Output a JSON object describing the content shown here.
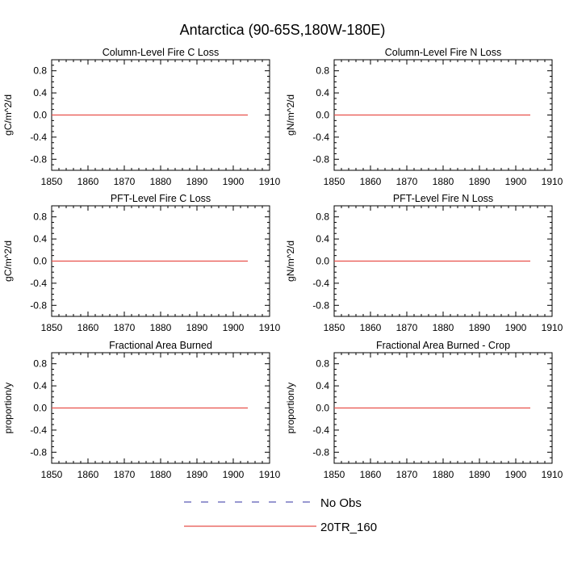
{
  "figure": {
    "title": "Antarctica (90-65S,180W-180E)"
  },
  "legend": {
    "placement": "bottom-center",
    "entries": [
      {
        "label": "No Obs",
        "color": "#5a5ab4",
        "dash": "dashed"
      },
      {
        "label": "20TR_160",
        "color": "#e8504a",
        "dash": "solid"
      }
    ]
  },
  "chart_data": [
    {
      "type": "line",
      "title": "Column-Level Fire C Loss",
      "ylabel": "gC/m^2/d",
      "xlabel": "",
      "xlim": [
        1850,
        1910
      ],
      "ylim": [
        -1.0,
        1.0
      ],
      "xticks": [
        1850,
        1860,
        1870,
        1880,
        1890,
        1900,
        1910
      ],
      "yticks": [
        -0.8,
        -0.4,
        0.0,
        0.4,
        0.8
      ],
      "ytick_labels": [
        "-0.8",
        "-0.4",
        "0.0",
        "0.4",
        "0.8"
      ],
      "series": [
        {
          "name": "20TR_160",
          "x": [
            1850,
            1904
          ],
          "y": [
            0.0,
            0.0
          ]
        }
      ]
    },
    {
      "type": "line",
      "title": "Column-Level Fire N Loss",
      "ylabel": "gN/m^2/d",
      "xlabel": "",
      "xlim": [
        1850,
        1910
      ],
      "ylim": [
        -1.0,
        1.0
      ],
      "xticks": [
        1850,
        1860,
        1870,
        1880,
        1890,
        1900,
        1910
      ],
      "yticks": [
        -0.8,
        -0.4,
        0.0,
        0.4,
        0.8
      ],
      "ytick_labels": [
        "-0.8",
        "-0.4",
        "0.0",
        "0.4",
        "0.8"
      ],
      "series": [
        {
          "name": "20TR_160",
          "x": [
            1850,
            1904
          ],
          "y": [
            0.0,
            0.0
          ]
        }
      ]
    },
    {
      "type": "line",
      "title": "PFT-Level Fire C Loss",
      "ylabel": "gC/m^2/d",
      "xlabel": "",
      "xlim": [
        1850,
        1910
      ],
      "ylim": [
        -1.0,
        1.0
      ],
      "xticks": [
        1850,
        1860,
        1870,
        1880,
        1890,
        1900,
        1910
      ],
      "yticks": [
        -0.8,
        -0.4,
        0.0,
        0.4,
        0.8
      ],
      "ytick_labels": [
        "-0.8",
        "-0.4",
        "0.0",
        "0.4",
        "0.8"
      ],
      "series": [
        {
          "name": "20TR_160",
          "x": [
            1850,
            1904
          ],
          "y": [
            0.0,
            0.0
          ]
        }
      ]
    },
    {
      "type": "line",
      "title": "PFT-Level Fire N Loss",
      "ylabel": "gN/m^2/d",
      "xlabel": "",
      "xlim": [
        1850,
        1910
      ],
      "ylim": [
        -1.0,
        1.0
      ],
      "xticks": [
        1850,
        1860,
        1870,
        1880,
        1890,
        1900,
        1910
      ],
      "yticks": [
        -0.8,
        -0.4,
        0.0,
        0.4,
        0.8
      ],
      "ytick_labels": [
        "-0.8",
        "-0.4",
        "0.0",
        "0.4",
        "0.8"
      ],
      "series": [
        {
          "name": "20TR_160",
          "x": [
            1850,
            1904
          ],
          "y": [
            0.0,
            0.0
          ]
        }
      ]
    },
    {
      "type": "line",
      "title": "Fractional Area Burned",
      "ylabel": "proportion/y",
      "xlabel": "",
      "xlim": [
        1850,
        1910
      ],
      "ylim": [
        -1.0,
        1.0
      ],
      "xticks": [
        1850,
        1860,
        1870,
        1880,
        1890,
        1900,
        1910
      ],
      "yticks": [
        -0.8,
        -0.4,
        0.0,
        0.4,
        0.8
      ],
      "ytick_labels": [
        "-0.8",
        "-0.4",
        "0.0",
        "0.4",
        "0.8"
      ],
      "series": [
        {
          "name": "20TR_160",
          "x": [
            1850,
            1904
          ],
          "y": [
            0.0,
            0.0
          ]
        }
      ]
    },
    {
      "type": "line",
      "title": "Fractional Area Burned - Crop",
      "ylabel": "proportion/y",
      "xlabel": "",
      "xlim": [
        1850,
        1910
      ],
      "ylim": [
        -1.0,
        1.0
      ],
      "xticks": [
        1850,
        1860,
        1870,
        1880,
        1890,
        1900,
        1910
      ],
      "yticks": [
        -0.8,
        -0.4,
        0.0,
        0.4,
        0.8
      ],
      "ytick_labels": [
        "-0.8",
        "-0.4",
        "0.0",
        "0.4",
        "0.8"
      ],
      "series": [
        {
          "name": "20TR_160",
          "x": [
            1850,
            1904
          ],
          "y": [
            0.0,
            0.0
          ]
        }
      ]
    }
  ]
}
